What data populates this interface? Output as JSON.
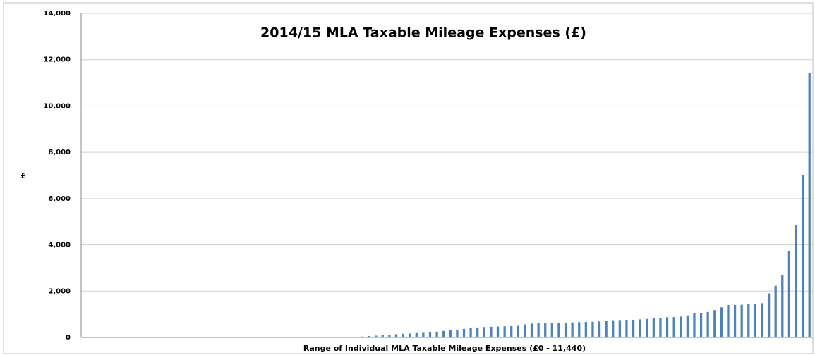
{
  "chart_data": {
    "type": "bar",
    "title": "2014/15 MLA Taxable Mileage Expenses (£)",
    "x_label": "Range of Individual MLA Taxable Mileage Expenses (£0 - 11,440)",
    "y_label": "£",
    "categories": [
      null,
      null,
      null,
      null,
      null,
      null,
      null,
      null,
      null,
      null,
      null,
      null,
      null,
      null,
      null,
      null,
      null,
      null,
      null,
      null,
      null,
      null,
      null,
      null,
      null,
      null,
      null,
      null,
      null,
      null,
      null,
      null,
      null,
      null,
      null,
      null,
      null,
      null,
      null,
      null,
      null,
      null,
      null,
      null,
      null,
      null,
      null,
      null,
      null,
      null,
      null,
      null,
      null,
      null,
      null,
      null,
      null,
      null,
      null,
      null,
      null,
      null,
      null,
      null,
      null,
      null,
      null,
      null,
      null,
      null,
      null,
      null,
      null,
      null,
      null,
      null,
      null,
      null,
      null,
      null,
      null,
      null,
      null,
      null,
      null,
      null,
      null,
      null,
      null,
      null,
      null,
      null,
      null,
      null,
      null,
      null,
      null,
      null,
      null,
      null,
      null,
      null,
      null,
      null,
      null,
      null,
      null,
      null
    ],
    "values": [
      0,
      0,
      0,
      0,
      0,
      0,
      0,
      0,
      0,
      0,
      0,
      0,
      0,
      0,
      0,
      0,
      0,
      0,
      0,
      0,
      0,
      0,
      0,
      0,
      0,
      0,
      0,
      0,
      0,
      0,
      0,
      0,
      0,
      0,
      0,
      0,
      0,
      0,
      10,
      20,
      30,
      40,
      60,
      80,
      100,
      120,
      140,
      160,
      170,
      190,
      200,
      220,
      250,
      280,
      310,
      340,
      370,
      400,
      430,
      450,
      460,
      470,
      480,
      490,
      500,
      560,
      600,
      610,
      620,
      630,
      640,
      640,
      650,
      660,
      670,
      680,
      690,
      700,
      710,
      720,
      740,
      760,
      780,
      800,
      820,
      850,
      870,
      880,
      900,
      950,
      1040,
      1060,
      1100,
      1180,
      1300,
      1400,
      1400,
      1410,
      1440,
      1460,
      1480,
      1900,
      2230,
      2680,
      3720,
      4850,
      7020,
      11440
    ],
    "color": "#4f81bd",
    "ylim": [
      0,
      14000
    ],
    "yticks": [
      0,
      {
        "value": 2000,
        "label": "2,000"
      },
      {
        "value": 4000,
        "label": "4,000"
      },
      {
        "value": 6000,
        "label": "6,000"
      },
      {
        "value": 8000,
        "label": "8,000"
      },
      {
        "value": 10000,
        "label": "10,000"
      },
      {
        "value": 12000,
        "label": "12,000"
      },
      {
        "value": 14000,
        "label": "14,000"
      }
    ],
    "grid": true
  }
}
